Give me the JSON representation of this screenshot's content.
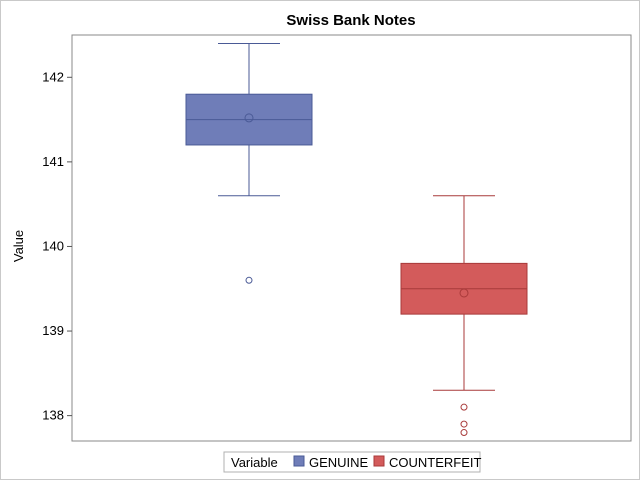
{
  "chart_data": {
    "type": "box",
    "title": "Swiss Bank Notes",
    "ylabel": "Value",
    "xlabel": "",
    "ylim": [
      137.7,
      142.5
    ],
    "yticks": [
      138,
      139,
      140,
      141,
      142
    ],
    "grid": false,
    "legend": {
      "title": "Variable",
      "placement": "bottom-center",
      "entries": [
        "GENUINE",
        "COUNTERFEIT"
      ]
    },
    "series": [
      {
        "name": "GENUINE",
        "color": "#6f7db8",
        "stroke": "#4a5a96",
        "whisker_low": 140.6,
        "q1": 141.2,
        "median": 141.5,
        "q3": 141.8,
        "whisker_high": 142.4,
        "mean": 141.52,
        "outliers": [
          139.6
        ]
      },
      {
        "name": "COUNTERFEIT",
        "color": "#d35b5b",
        "stroke": "#a83a3a",
        "whisker_low": 138.3,
        "q1": 139.2,
        "median": 139.5,
        "q3": 139.8,
        "whisker_high": 140.6,
        "mean": 139.45,
        "outliers": [
          138.1,
          137.9,
          137.8
        ]
      }
    ]
  }
}
